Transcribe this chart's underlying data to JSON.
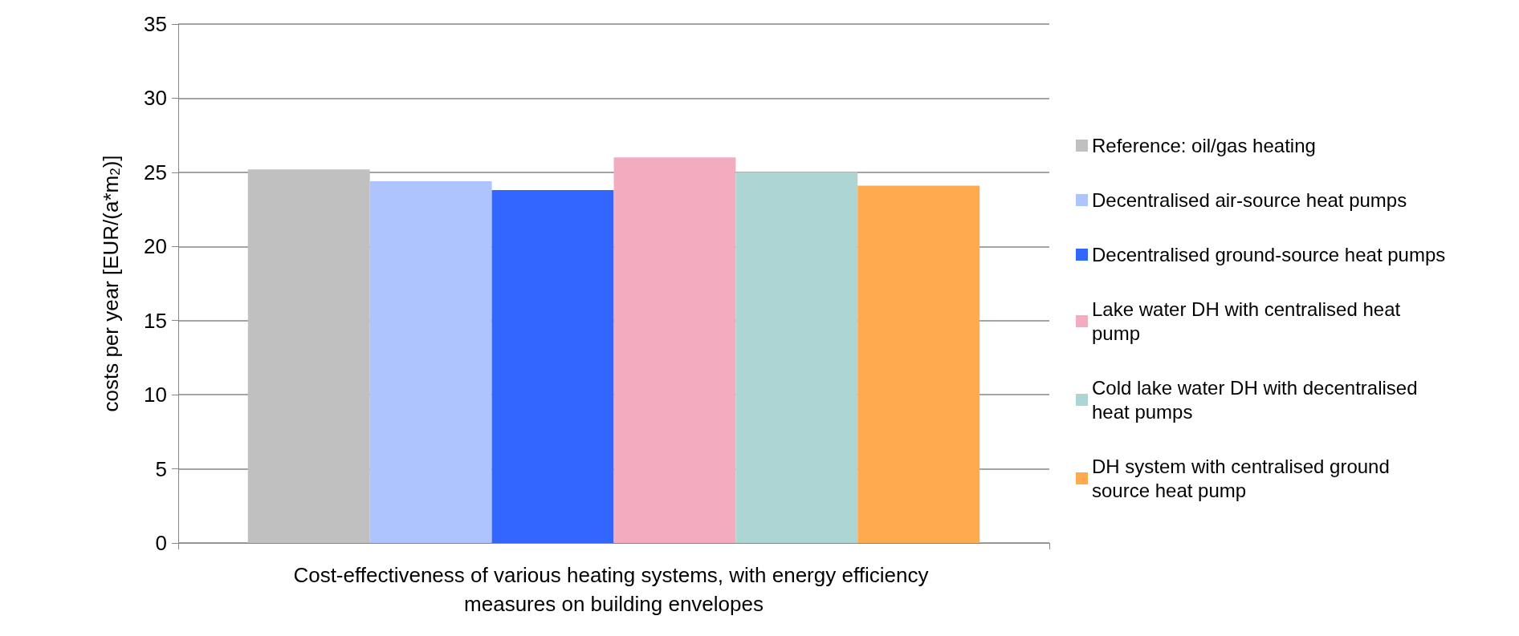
{
  "chart_data": {
    "type": "bar",
    "ylabel": "costs per year [EUR/(a*m$_{2}$)]",
    "categories": [
      "Cost-effectiveness of various heating systems, with energy efficiency measures on building envelopes"
    ],
    "series": [
      {
        "name": "Reference: oil/gas heating",
        "color": "#c0c0c0",
        "values": [
          25.2
        ]
      },
      {
        "name": "Decentralised air-source heat pumps",
        "color": "#adc4fe",
        "values": [
          24.4
        ]
      },
      {
        "name": "Decentralised ground-source heat pumps",
        "color": "#3366ff",
        "values": [
          23.8
        ]
      },
      {
        "name": "Lake water DH with centralised heat pump",
        "color": "#f3acbf",
        "values": [
          26.0
        ]
      },
      {
        "name": "Cold lake water DH with decentralised heat pumps",
        "color": "#add5d4",
        "values": [
          25.0
        ]
      },
      {
        "name": "DH system with centralised ground source heat pump",
        "color": "#feaa4f",
        "values": [
          24.1
        ]
      }
    ],
    "ylim": [
      0,
      35
    ],
    "yticks": [
      0,
      5,
      10,
      15,
      20,
      25,
      30,
      35
    ],
    "grid": "y",
    "legend": "right"
  }
}
